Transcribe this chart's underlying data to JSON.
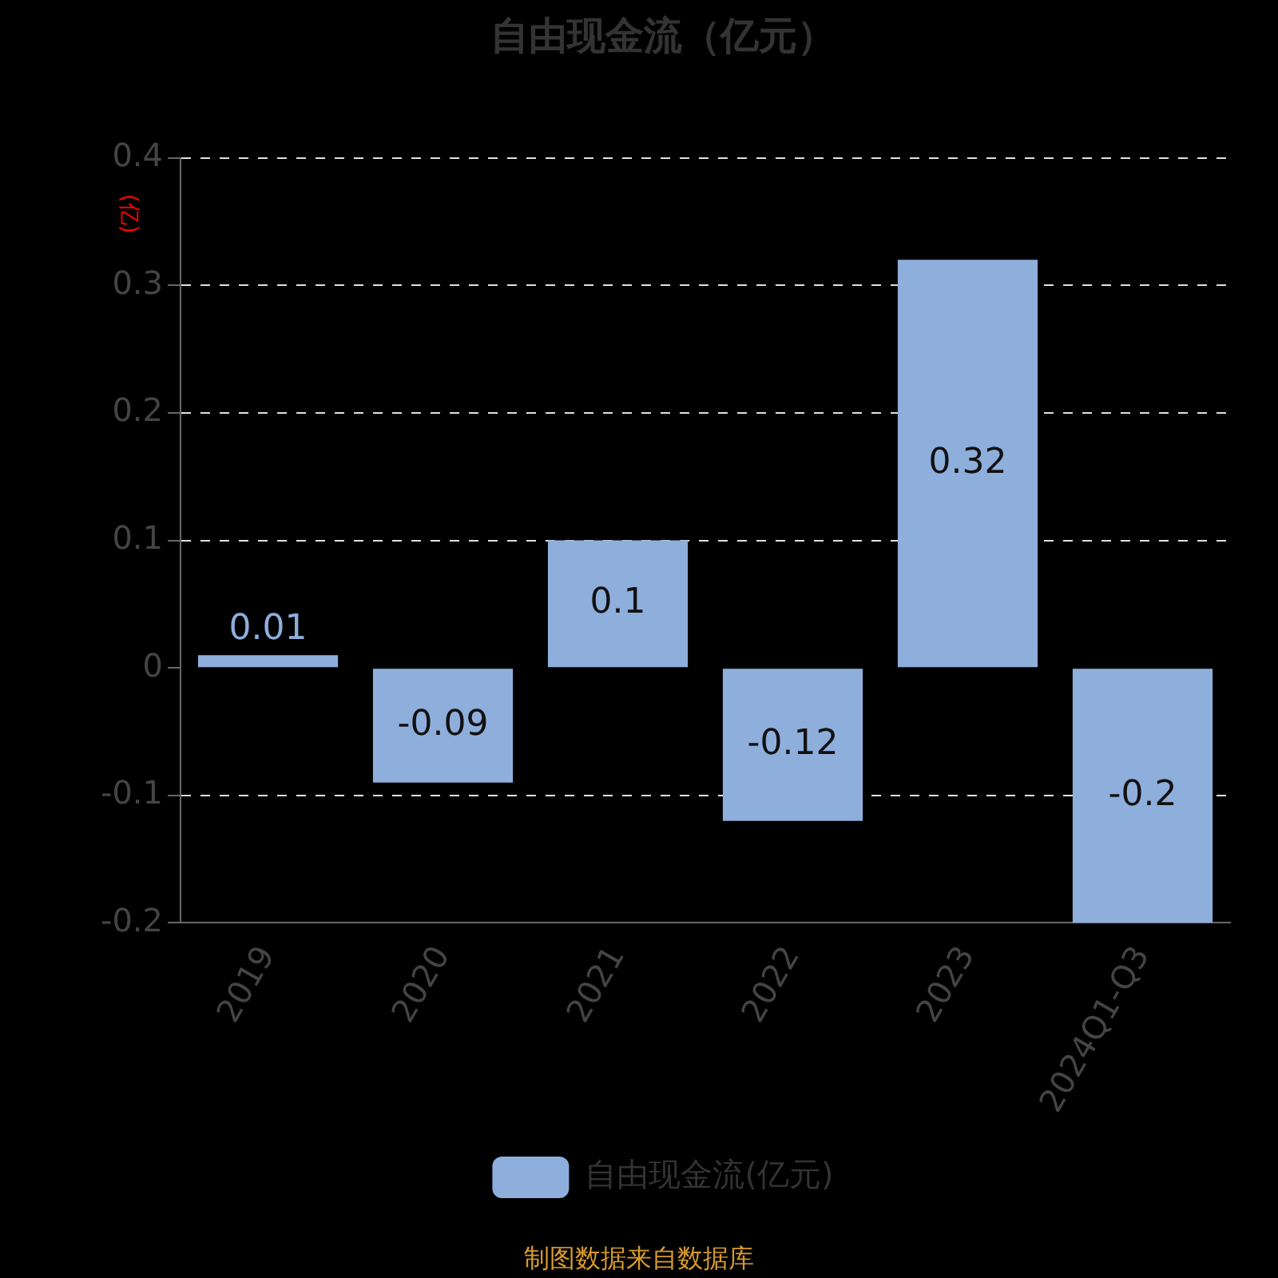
{
  "chart_data": {
    "type": "bar",
    "title": "自由现金流（亿元）",
    "ylabel": "(亿)",
    "categories": [
      "2019",
      "2020",
      "2021",
      "2022",
      "2023",
      "2024Q1-Q3"
    ],
    "series": [
      {
        "name": "自由现金流(亿元)",
        "color": "#8eaedc",
        "values": [
          0.01,
          -0.09,
          0.1,
          -0.12,
          0.32,
          -0.2
        ]
      }
    ],
    "ylim": [
      -0.2,
      0.4
    ],
    "yticks": [
      -0.2,
      -0.1,
      0,
      0.1,
      0.2,
      0.3,
      0.4
    ],
    "grid": "y",
    "legend": "bottom",
    "data_labels": true,
    "annotations": [
      "制图数据来自数据库"
    ]
  }
}
